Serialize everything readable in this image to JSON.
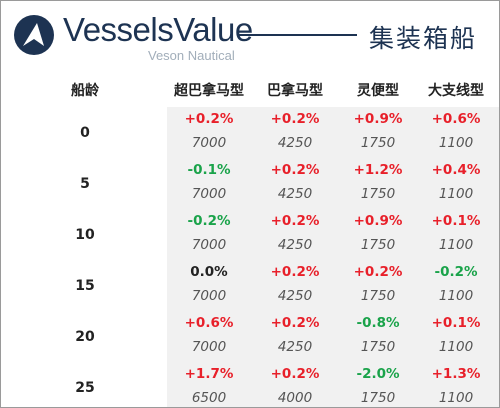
{
  "header": {
    "brand_name": "VesselsValue",
    "brand_sub": "Veson Nautical",
    "title": "集装箱船",
    "brand_color": "#1d3352"
  },
  "table": {
    "age_header": "船龄",
    "columns": [
      "超巴拿马型",
      "巴拿马型",
      "灵便型",
      "大支线型"
    ],
    "colors": {
      "positive": "#e8202a",
      "negative": "#1aa34a",
      "neutral": "#222222",
      "row_shade": "#f1f1f1"
    },
    "rows": [
      {
        "age": "0",
        "changes": [
          "+0.2%",
          "+0.2%",
          "+0.9%",
          "+0.6%"
        ],
        "values": [
          "7000",
          "4250",
          "1750",
          "1100"
        ]
      },
      {
        "age": "5",
        "changes": [
          "-0.1%",
          "+0.2%",
          "+1.2%",
          "+0.4%"
        ],
        "values": [
          "7000",
          "4250",
          "1750",
          "1100"
        ]
      },
      {
        "age": "10",
        "changes": [
          "-0.2%",
          "+0.2%",
          "+0.9%",
          "+0.1%"
        ],
        "values": [
          "7000",
          "4250",
          "1750",
          "1100"
        ]
      },
      {
        "age": "15",
        "changes": [
          "0.0%",
          "+0.2%",
          "+0.2%",
          "-0.2%"
        ],
        "values": [
          "7000",
          "4250",
          "1750",
          "1100"
        ]
      },
      {
        "age": "20",
        "changes": [
          "+0.6%",
          "+0.2%",
          "-0.8%",
          "+0.1%"
        ],
        "values": [
          "7000",
          "4250",
          "1750",
          "1100"
        ]
      },
      {
        "age": "25",
        "changes": [
          "+1.7%",
          "+0.2%",
          "-2.0%",
          "+1.3%"
        ],
        "values": [
          "6500",
          "4000",
          "1750",
          "1100"
        ]
      }
    ]
  }
}
